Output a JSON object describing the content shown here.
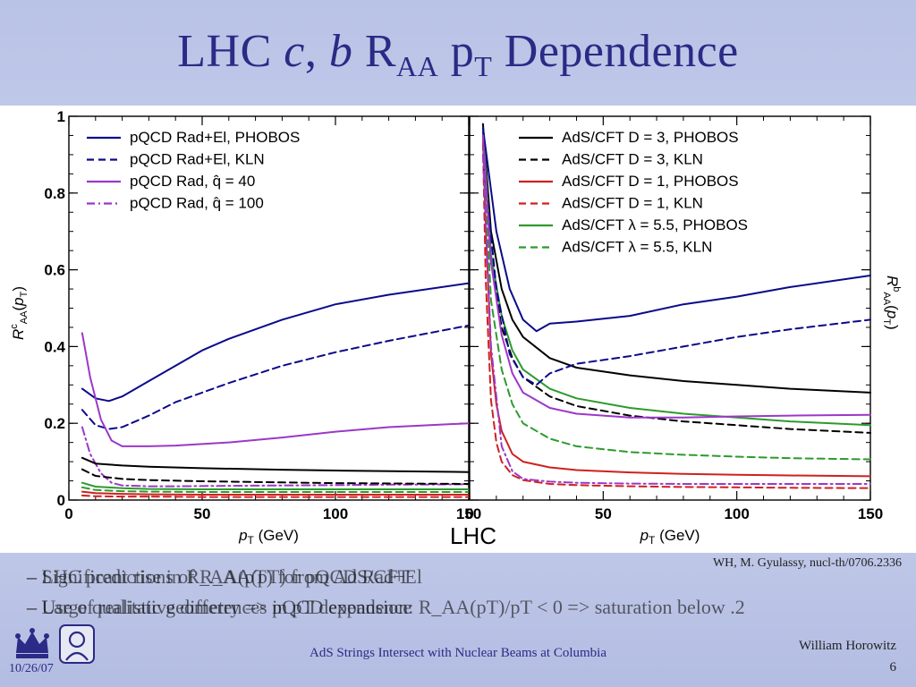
{
  "title": {
    "part1": "LHC ",
    "part_c": "c",
    "part_comma": ",",
    "part_b": " b",
    "part_R": " R",
    "part_AA": "AA",
    "part_p": " p",
    "part_T": "T",
    "part_end": " Dependence"
  },
  "bullets": [
    [
      "–  Significant rise in R_AA(pT) for pQCD Rad+El",
      "–  LHC predictions of R_AA(pT) from AdS/CFT"
    ],
    [
      "–  Large qualitative differences in pT dependence",
      "–  Use of realistic geometry => pQCD expansion: R_AA(pT)/pT < 0 => saturation below .2"
    ]
  ],
  "citation": "WH, M. Gyulassy, nucl-th/0706.2336",
  "footer": {
    "center": "AdS Strings Intersect with Nuclear Beams at Columbia",
    "author": "William Horowitz",
    "page": "6",
    "date": "10/26/07"
  },
  "colors": {
    "navy": "#0a0a8a",
    "purple": "#9b38c8",
    "black": "#000000",
    "red": "#d02020",
    "green": "#2d9a2d",
    "title": "#2b2a86"
  },
  "chart_data": [
    {
      "type": "line",
      "title": "",
      "xlabel": "p_T (GeV)",
      "ylabel": "R^c_AA(p_T)",
      "xlim": [
        0,
        150
      ],
      "ylim": [
        0,
        1
      ],
      "xticks": [
        0,
        50,
        100,
        150
      ],
      "yticks": [
        0,
        0.2,
        0.4,
        0.6,
        0.8,
        1
      ],
      "legend_position": "top-left",
      "series": [
        {
          "name": "pQCD Rad+El, PHOBOS",
          "color": "#0a0a8a",
          "style": "solid",
          "legend": true,
          "x": [
            5,
            10,
            15,
            20,
            30,
            40,
            50,
            60,
            80,
            100,
            120,
            150
          ],
          "y": [
            0.29,
            0.265,
            0.258,
            0.27,
            0.31,
            0.35,
            0.39,
            0.42,
            0.47,
            0.51,
            0.535,
            0.565
          ]
        },
        {
          "name": "pQCD Rad+El, KLN",
          "color": "#0a0a8a",
          "style": "dash",
          "legend": true,
          "x": [
            5,
            10,
            15,
            20,
            30,
            40,
            50,
            60,
            80,
            100,
            120,
            150
          ],
          "y": [
            0.235,
            0.195,
            0.185,
            0.19,
            0.22,
            0.255,
            0.28,
            0.305,
            0.35,
            0.385,
            0.415,
            0.455
          ]
        },
        {
          "name": "pQCD Rad, q̂ = 40",
          "color": "#9b38c8",
          "style": "solid",
          "legend": true,
          "x": [
            5,
            8,
            12,
            16,
            20,
            30,
            40,
            60,
            80,
            100,
            120,
            150
          ],
          "y": [
            0.435,
            0.32,
            0.21,
            0.155,
            0.14,
            0.14,
            0.142,
            0.15,
            0.163,
            0.178,
            0.19,
            0.2
          ]
        },
        {
          "name": "pQCD Rad, q̂ = 100",
          "color": "#9b38c8",
          "style": "dashdot",
          "legend": true,
          "x": [
            5,
            8,
            12,
            16,
            20,
            30,
            40,
            60,
            80,
            100,
            120,
            150
          ],
          "y": [
            0.19,
            0.12,
            0.07,
            0.045,
            0.038,
            0.036,
            0.036,
            0.037,
            0.038,
            0.039,
            0.04,
            0.041
          ]
        },
        {
          "color": "#000000",
          "style": "solid",
          "legend": false,
          "x": [
            5,
            10,
            20,
            30,
            50,
            80,
            100,
            150
          ],
          "y": [
            0.11,
            0.095,
            0.09,
            0.087,
            0.083,
            0.079,
            0.077,
            0.073
          ]
        },
        {
          "color": "#000000",
          "style": "dash",
          "legend": false,
          "x": [
            5,
            10,
            20,
            30,
            50,
            80,
            100,
            150
          ],
          "y": [
            0.08,
            0.063,
            0.055,
            0.052,
            0.049,
            0.046,
            0.044,
            0.042
          ]
        },
        {
          "color": "#2d9a2d",
          "style": "solid",
          "legend": false,
          "x": [
            5,
            10,
            20,
            30,
            50,
            80,
            100,
            150
          ],
          "y": [
            0.045,
            0.035,
            0.031,
            0.029,
            0.028,
            0.028,
            0.028,
            0.028
          ]
        },
        {
          "color": "#2d9a2d",
          "style": "dash",
          "legend": false,
          "x": [
            5,
            10,
            20,
            30,
            50,
            80,
            100,
            150
          ],
          "y": [
            0.033,
            0.026,
            0.023,
            0.022,
            0.021,
            0.021,
            0.021,
            0.021
          ]
        },
        {
          "color": "#d02020",
          "style": "solid",
          "legend": false,
          "x": [
            5,
            10,
            20,
            30,
            50,
            80,
            100,
            150
          ],
          "y": [
            0.022,
            0.018,
            0.016,
            0.015,
            0.014,
            0.014,
            0.014,
            0.014
          ]
        },
        {
          "color": "#d02020",
          "style": "dash",
          "legend": false,
          "x": [
            5,
            10,
            20,
            30,
            50,
            80,
            100,
            150
          ],
          "y": [
            0.012,
            0.01,
            0.009,
            0.009,
            0.008,
            0.008,
            0.008,
            0.008
          ]
        }
      ]
    },
    {
      "type": "line",
      "title": "LHC",
      "xlabel": "p_T (GeV)",
      "ylabel": "R^b_AA(p_T)",
      "xlim": [
        0,
        150
      ],
      "ylim": [
        0,
        1
      ],
      "xticks": [
        0,
        50,
        100,
        150
      ],
      "legend_position": "top-right",
      "series": [
        {
          "name": "AdS/CFT D = 3, PHOBOS",
          "color": "#000000",
          "style": "solid",
          "legend": true,
          "x": [
            5,
            8,
            12,
            16,
            20,
            30,
            40,
            60,
            80,
            100,
            120,
            150
          ],
          "y": [
            0.98,
            0.7,
            0.55,
            0.47,
            0.425,
            0.37,
            0.345,
            0.325,
            0.31,
            0.3,
            0.29,
            0.28
          ]
        },
        {
          "name": "AdS/CFT D = 3, KLN",
          "color": "#000000",
          "style": "dash",
          "legend": true,
          "x": [
            5,
            8,
            12,
            16,
            20,
            30,
            40,
            60,
            80,
            100,
            120,
            150
          ],
          "y": [
            0.96,
            0.62,
            0.45,
            0.37,
            0.32,
            0.27,
            0.245,
            0.22,
            0.205,
            0.195,
            0.185,
            0.175
          ]
        },
        {
          "name": "AdS/CFT D = 1, PHOBOS",
          "color": "#d02020",
          "style": "solid",
          "legend": true,
          "x": [
            5,
            6,
            8,
            10,
            12,
            16,
            20,
            30,
            40,
            60,
            80,
            100,
            120,
            150
          ],
          "y": [
            0.95,
            0.72,
            0.38,
            0.25,
            0.18,
            0.12,
            0.1,
            0.085,
            0.078,
            0.072,
            0.068,
            0.066,
            0.064,
            0.062
          ]
        },
        {
          "name": "AdS/CFT D = 1, KLN",
          "color": "#d02020",
          "style": "dash",
          "legend": true,
          "x": [
            5,
            6,
            8,
            10,
            12,
            16,
            20,
            30,
            40,
            60,
            80,
            100,
            120,
            150
          ],
          "y": [
            0.93,
            0.58,
            0.26,
            0.15,
            0.1,
            0.065,
            0.052,
            0.042,
            0.039,
            0.036,
            0.034,
            0.033,
            0.032,
            0.031
          ]
        },
        {
          "name": "AdS/CFT λ = 5.5, PHOBOS",
          "color": "#2d9a2d",
          "style": "solid",
          "legend": true,
          "x": [
            5,
            8,
            12,
            16,
            20,
            30,
            40,
            60,
            80,
            100,
            120,
            150
          ],
          "y": [
            0.97,
            0.64,
            0.48,
            0.39,
            0.34,
            0.29,
            0.265,
            0.24,
            0.225,
            0.215,
            0.205,
            0.195
          ]
        },
        {
          "name": "AdS/CFT λ = 5.5, KLN",
          "color": "#2d9a2d",
          "style": "dash",
          "legend": true,
          "x": [
            5,
            8,
            12,
            16,
            20,
            30,
            40,
            60,
            80,
            100,
            120,
            150
          ],
          "y": [
            0.95,
            0.52,
            0.34,
            0.25,
            0.2,
            0.16,
            0.14,
            0.125,
            0.118,
            0.113,
            0.109,
            0.106
          ]
        },
        {
          "color": "#0a0a8a",
          "style": "solid",
          "legend": false,
          "x": [
            5,
            10,
            15,
            20,
            25,
            30,
            40,
            60,
            80,
            100,
            120,
            150
          ],
          "y": [
            0.97,
            0.7,
            0.55,
            0.47,
            0.44,
            0.46,
            0.465,
            0.48,
            0.51,
            0.53,
            0.555,
            0.585
          ]
        },
        {
          "color": "#0a0a8a",
          "style": "dash",
          "legend": false,
          "x": [
            5,
            10,
            15,
            20,
            25,
            30,
            40,
            60,
            80,
            100,
            120,
            150
          ],
          "y": [
            0.9,
            0.55,
            0.38,
            0.32,
            0.3,
            0.33,
            0.355,
            0.375,
            0.4,
            0.425,
            0.445,
            0.47
          ]
        },
        {
          "color": "#9b38c8",
          "style": "solid",
          "legend": false,
          "x": [
            5,
            8,
            12,
            16,
            20,
            30,
            40,
            60,
            80,
            100,
            120,
            150
          ],
          "y": [
            0.95,
            0.62,
            0.43,
            0.33,
            0.28,
            0.24,
            0.225,
            0.215,
            0.215,
            0.218,
            0.22,
            0.222
          ]
        },
        {
          "color": "#9b38c8",
          "style": "dashdot",
          "legend": false,
          "x": [
            5,
            8,
            12,
            16,
            20,
            30,
            40,
            60,
            80,
            100,
            120,
            150
          ],
          "y": [
            0.9,
            0.4,
            0.14,
            0.075,
            0.055,
            0.048,
            0.045,
            0.043,
            0.042,
            0.042,
            0.042,
            0.042
          ]
        }
      ]
    }
  ]
}
